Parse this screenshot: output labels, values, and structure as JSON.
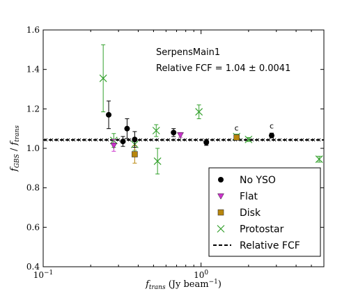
{
  "chart_data": {
    "type": "scatter",
    "x_scale": "log",
    "xlim": [
      0.1,
      6.0
    ],
    "ylim": [
      0.4,
      1.6
    ],
    "xlabel": "f_trans (Jy beam^-1)",
    "ylabel": "f_GBS / f_trans",
    "annotation_title": "SerpensMain1",
    "annotation_fcf": "Relative FCF = 1.04 ± 0.0041",
    "reference_line": {
      "name": "Relative FCF",
      "y": 1.043,
      "color": "#000000"
    },
    "x_ticks": [
      {
        "value": 0.1,
        "base": "10",
        "exp": "−1"
      },
      {
        "value": 1.0,
        "base": "10",
        "exp": "0"
      }
    ],
    "y_ticks": [
      {
        "value": 0.4,
        "label": "0.4"
      },
      {
        "value": 0.6,
        "label": "0.6"
      },
      {
        "value": 0.8,
        "label": "0.8"
      },
      {
        "value": 1.0,
        "label": "1.0"
      },
      {
        "value": 1.2,
        "label": "1.2"
      },
      {
        "value": 1.4,
        "label": "1.4"
      },
      {
        "value": 1.6,
        "label": "1.6"
      }
    ],
    "legend": {
      "position": "lower-right"
    },
    "series": [
      {
        "name": "No YSO",
        "marker": "circle",
        "color": "#000000",
        "points": [
          {
            "x": 0.26,
            "y": 1.17,
            "err": 0.07
          },
          {
            "x": 0.32,
            "y": 1.035,
            "err": 0.025
          },
          {
            "x": 0.34,
            "y": 1.1,
            "err": 0.05
          },
          {
            "x": 0.38,
            "y": 1.045,
            "err": 0.04
          },
          {
            "x": 0.67,
            "y": 1.08,
            "err": 0.02
          },
          {
            "x": 1.08,
            "y": 1.03,
            "err": 0.015
          },
          {
            "x": 2.8,
            "y": 1.065,
            "err": 0.012
          }
        ]
      },
      {
        "name": "Flat",
        "marker": "triangle-down",
        "color": "#cc33cc",
        "points": [
          {
            "x": 0.28,
            "y": 1.015,
            "err": 0.03
          },
          {
            "x": 0.74,
            "y": 1.068,
            "err": 0.012
          }
        ]
      },
      {
        "name": "Disk",
        "marker": "square",
        "color": "#b8860b",
        "points": [
          {
            "x": 0.38,
            "y": 0.97,
            "err": 0.045
          },
          {
            "x": 1.68,
            "y": 1.055,
            "err": 0.01
          }
        ]
      },
      {
        "name": "Protostar",
        "marker": "x",
        "color": "#33a02c",
        "points": [
          {
            "x": 0.24,
            "y": 1.355,
            "err": 0.17
          },
          {
            "x": 0.28,
            "y": 1.04,
            "err": 0.035
          },
          {
            "x": 0.38,
            "y": 1.02,
            "err": 0.03
          },
          {
            "x": 0.52,
            "y": 1.09,
            "err": 0.03
          },
          {
            "x": 0.53,
            "y": 0.935,
            "err": 0.065
          },
          {
            "x": 0.97,
            "y": 1.185,
            "err": 0.035
          },
          {
            "x": 1.68,
            "y": 1.06,
            "err": 0.012
          },
          {
            "x": 2.0,
            "y": 1.045,
            "err": 0.01
          },
          {
            "x": 5.6,
            "y": 0.945,
            "err": 0.015
          }
        ]
      }
    ],
    "c_labels": [
      {
        "text": "c",
        "x": 1.68,
        "y": 1.105
      },
      {
        "text": "c",
        "x": 2.8,
        "y": 1.115
      }
    ]
  }
}
